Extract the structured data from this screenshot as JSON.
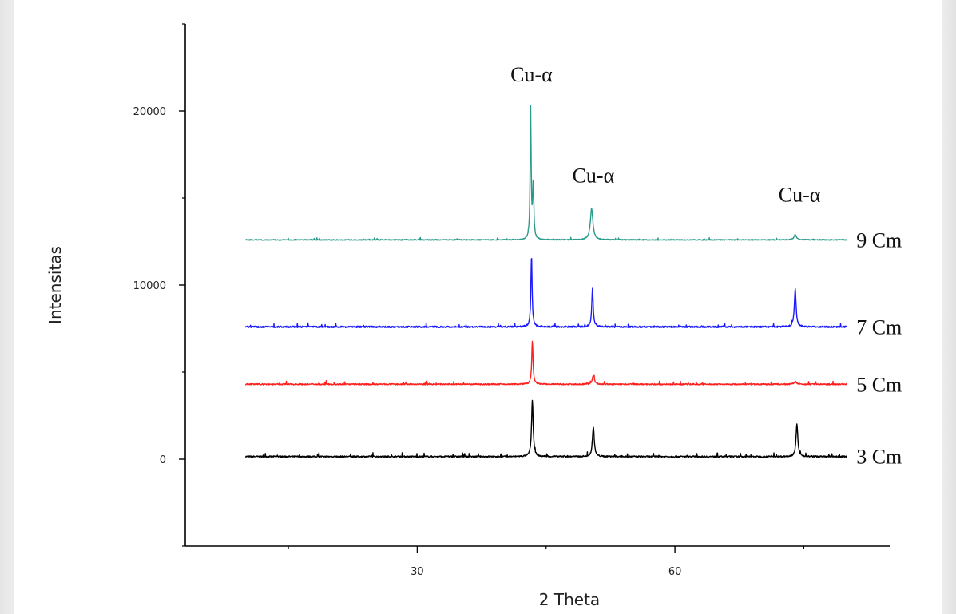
{
  "chart_data": {
    "type": "line",
    "xlabel": "2 Theta",
    "ylabel": "Intensitas",
    "xlim": [
      3,
      85
    ],
    "ylim": [
      -5000,
      25000
    ],
    "x_ticks": [
      30,
      60
    ],
    "x_minor_ticks": [
      15,
      45,
      75
    ],
    "y_ticks": [
      0,
      10000,
      20000
    ],
    "y_tick_labels": [
      "0",
      "10000",
      "20000"
    ],
    "y_minor_ticks": [
      -5000,
      5000,
      15000,
      25000
    ],
    "grid": false,
    "annotations": [
      {
        "text": "Cu-α",
        "x": 43.3,
        "y": 21700
      },
      {
        "text": "Cu-α",
        "x": 50.5,
        "y": 15900
      },
      {
        "text": "Cu-α",
        "x": 74.5,
        "y": 14800
      }
    ],
    "series": [
      {
        "name": "3 Cm",
        "color": "#000000",
        "baseline": 150,
        "noise": 80,
        "peaks": [
          {
            "x": 43.4,
            "y": 3400,
            "width": 0.22
          },
          {
            "x": 50.5,
            "y": 1850,
            "width": 0.25
          },
          {
            "x": 74.2,
            "y": 2000,
            "width": 0.25
          }
        ]
      },
      {
        "name": "5 Cm",
        "color": "#ff2020",
        "baseline": 4300,
        "noise": 70,
        "peaks": [
          {
            "x": 43.4,
            "y": 6800,
            "width": 0.18
          },
          {
            "x": 50.5,
            "y": 4800,
            "width": 0.28
          },
          {
            "x": 74.0,
            "y": 4450,
            "width": 0.35
          }
        ]
      },
      {
        "name": "7 Cm",
        "color": "#1a1aff",
        "baseline": 7600,
        "noise": 90,
        "peaks": [
          {
            "x": 43.3,
            "y": 11700,
            "width": 0.17
          },
          {
            "x": 50.4,
            "y": 9800,
            "width": 0.2
          },
          {
            "x": 74.0,
            "y": 9800,
            "width": 0.24
          }
        ]
      },
      {
        "name": "9 Cm",
        "color": "#2a9a8c",
        "baseline": 12600,
        "noise": 50,
        "peaks": [
          {
            "x": 43.2,
            "y": 20100,
            "width": 0.14
          },
          {
            "x": 43.5,
            "y": 15800,
            "width": 0.16
          },
          {
            "x": 50.3,
            "y": 14400,
            "width": 0.35
          },
          {
            "x": 74.0,
            "y": 12900,
            "width": 0.35
          }
        ]
      }
    ]
  }
}
